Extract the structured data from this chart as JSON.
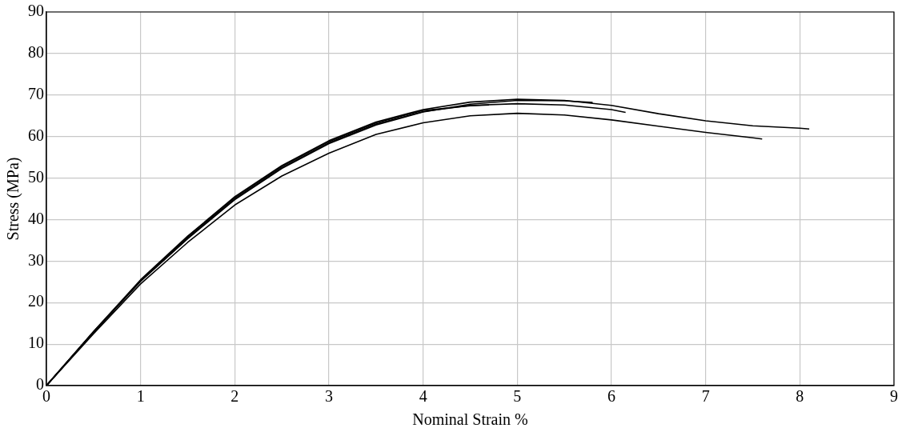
{
  "chart_data": {
    "type": "line",
    "xlabel": "Nominal Strain %",
    "ylabel": "Stress (MPa)",
    "xlim": [
      0,
      9
    ],
    "xticks": [
      0,
      1,
      2,
      3,
      4,
      5,
      6,
      7,
      8,
      9
    ],
    "ylim": [
      0,
      90
    ],
    "yticks": [
      0,
      10,
      20,
      30,
      40,
      50,
      60,
      70,
      80,
      90
    ],
    "grid": true,
    "legend": false,
    "marker": "none",
    "line_style": "solid",
    "series": [
      {
        "color": "#000000",
        "x": [
          0,
          0.5,
          1,
          1.5,
          2,
          2.5,
          3,
          3.5,
          4,
          4.5,
          5,
          5.5,
          6,
          6.5,
          7,
          7.5,
          8,
          8.1
        ],
        "values": [
          0,
          13,
          25.5,
          36,
          45.5,
          53,
          59,
          63.5,
          66.5,
          68.3,
          69,
          68.7,
          67.5,
          65.5,
          63.8,
          62.6,
          62,
          61.8
        ]
      },
      {
        "color": "#000000",
        "x": [
          0,
          0.5,
          1,
          1.5,
          2,
          2.5,
          3,
          3.5,
          4,
          4.5,
          5,
          5.5,
          6,
          6.5,
          7,
          7.5,
          7.6
        ],
        "values": [
          0,
          12.5,
          24.5,
          34.5,
          43.5,
          50.5,
          56,
          60.5,
          63.3,
          65,
          65.6,
          65.2,
          64,
          62.5,
          61,
          59.7,
          59.4
        ]
      },
      {
        "color": "#000000",
        "x": [
          0,
          0.5,
          1,
          1.5,
          2,
          2.5,
          3,
          3.5,
          4,
          4.5,
          5,
          5.5,
          6,
          6.15
        ],
        "values": [
          0,
          12.8,
          25.2,
          35.5,
          45,
          52.5,
          58.5,
          63,
          66,
          67.5,
          67.9,
          67.6,
          66.5,
          65.8
        ]
      },
      {
        "color": "#000000",
        "x": [
          0,
          0.5,
          1,
          1.5,
          2,
          2.5,
          3,
          3.5,
          4,
          4.5,
          4.7
        ],
        "values": [
          0,
          13,
          25.3,
          35.8,
          45.3,
          52.8,
          58.8,
          63.3,
          66.3,
          67.4,
          67.6
        ]
      },
      {
        "color": "#000000",
        "x": [
          0,
          0.5,
          1,
          1.5,
          2,
          2.5,
          3,
          3.5,
          4,
          4.5,
          5,
          5.5,
          5.8
        ],
        "values": [
          0,
          12.9,
          25.1,
          35.4,
          44.8,
          52.3,
          58.3,
          62.8,
          65.9,
          67.8,
          68.7,
          68.6,
          68.2
        ]
      }
    ]
  }
}
